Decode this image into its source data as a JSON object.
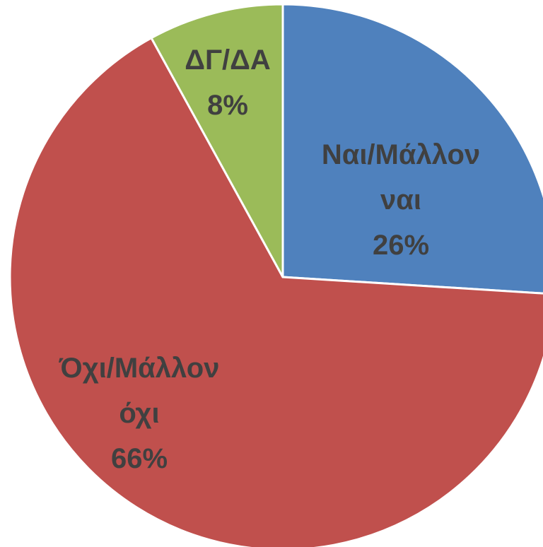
{
  "chart_data": {
    "type": "pie",
    "categories": [
      "Ναι/Μάλλον ναι",
      "Όχι/Μάλλον όχι",
      "ΔΓ/ΔΑ"
    ],
    "values": [
      26,
      66,
      8
    ],
    "value_labels": [
      "26%",
      "66%",
      "8%"
    ],
    "colors": [
      "#4f81bd",
      "#c0504d",
      "#9bbb59"
    ]
  }
}
